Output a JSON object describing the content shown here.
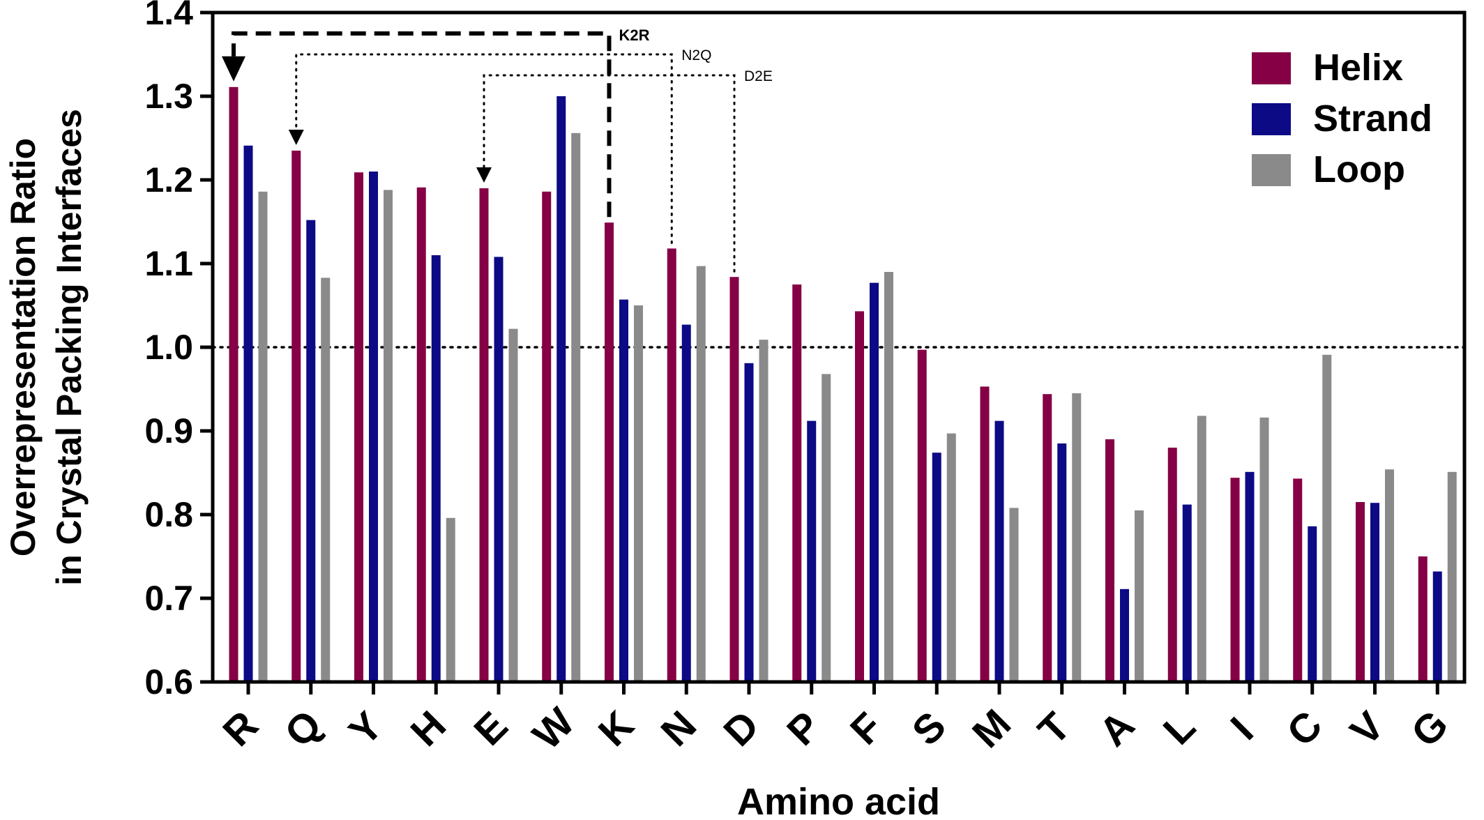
{
  "chart_data": {
    "type": "bar",
    "xlabel": "Amino acid",
    "ylabel_lines": [
      "Overrepresentation Ratio",
      "in Crystal Packing Interfaces"
    ],
    "ylim": [
      0.6,
      1.4
    ],
    "yticks": [
      "0.6",
      "0.7",
      "0.8",
      "0.9",
      "1.0",
      "1.1",
      "1.2",
      "1.3",
      "1.4"
    ],
    "reference_line": 1.0,
    "legend_position": "top-right",
    "categories": [
      "R",
      "Q",
      "Y",
      "H",
      "E",
      "W",
      "K",
      "N",
      "D",
      "P",
      "F",
      "S",
      "M",
      "T",
      "A",
      "L",
      "I",
      "C",
      "V",
      "G"
    ],
    "series": [
      {
        "name": "Helix",
        "color": "#850044",
        "values": [
          1.311,
          1.235,
          1.209,
          1.191,
          1.19,
          1.186,
          1.149,
          1.118,
          1.084,
          1.075,
          1.043,
          0.997,
          0.953,
          0.944,
          0.89,
          0.88,
          0.844,
          0.843,
          0.815,
          0.75
        ]
      },
      {
        "name": "Strand",
        "color": "#0c0a85",
        "values": [
          1.241,
          1.152,
          1.21,
          1.11,
          1.108,
          1.3,
          1.057,
          1.027,
          0.981,
          0.912,
          1.077,
          0.874,
          0.912,
          0.885,
          0.711,
          0.812,
          0.851,
          0.786,
          0.814,
          0.732
        ]
      },
      {
        "name": "Loop",
        "color": "#8a8a8a",
        "values": [
          1.186,
          1.083,
          1.188,
          0.796,
          1.022,
          1.256,
          1.05,
          1.097,
          1.009,
          0.968,
          1.09,
          0.897,
          0.808,
          0.945,
          0.805,
          0.918,
          0.916,
          0.991,
          0.854,
          0.851
        ]
      }
    ],
    "annotations": [
      {
        "label": "K2R",
        "from": "K",
        "to": "R",
        "style": "dashed",
        "level": 1.375
      },
      {
        "label": "N2Q",
        "from": "N",
        "to": "Q",
        "style": "dotted",
        "level": 1.35
      },
      {
        "label": "D2E",
        "from": "D",
        "to": "E",
        "style": "dotted",
        "level": 1.325
      }
    ]
  }
}
